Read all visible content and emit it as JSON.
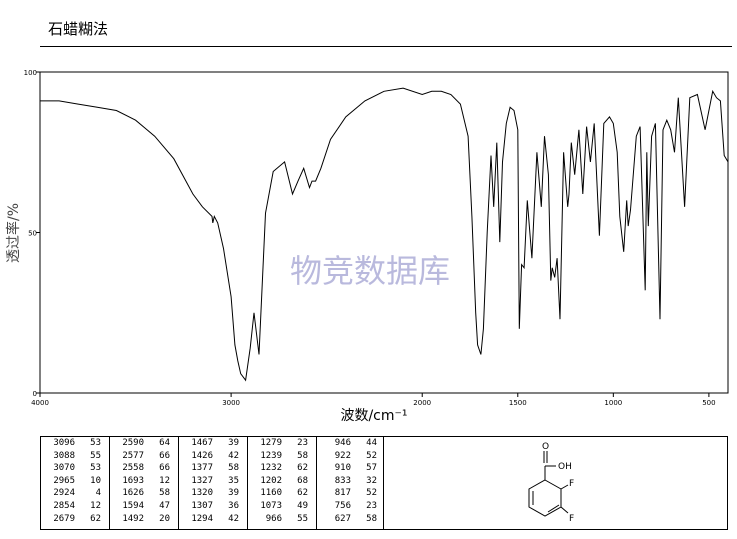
{
  "header": {
    "title": "石蜡糊法"
  },
  "chart_data": {
    "type": "line",
    "xlabel": "波数/cm⁻¹",
    "ylabel": "透过率/%",
    "xlim": [
      4000,
      400
    ],
    "ylim": [
      0,
      100
    ],
    "x_ticks": [
      4000,
      3000,
      2000,
      1500,
      1000,
      500
    ],
    "y_ticks": [
      0,
      50,
      100
    ],
    "watermark": "物竞数据库",
    "series": [
      {
        "x": [
          4000,
          3900,
          3800,
          3700,
          3600,
          3500,
          3400,
          3300,
          3200,
          3150,
          3100,
          3096,
          3088,
          3070,
          3040,
          3000,
          2980,
          2965,
          2950,
          2924,
          2900,
          2880,
          2854,
          2820,
          2780,
          2720,
          2679,
          2650,
          2620,
          2590,
          2577,
          2558,
          2530,
          2480,
          2400,
          2300,
          2200,
          2100,
          2000,
          1950,
          1900,
          1850,
          1800,
          1760,
          1740,
          1720,
          1710,
          1693,
          1680,
          1660,
          1640,
          1626,
          1610,
          1594,
          1580,
          1560,
          1540,
          1520,
          1500,
          1492,
          1480,
          1467,
          1450,
          1426,
          1400,
          1377,
          1360,
          1340,
          1327,
          1320,
          1307,
          1294,
          1279,
          1260,
          1239,
          1232,
          1220,
          1202,
          1180,
          1160,
          1140,
          1120,
          1100,
          1073,
          1050,
          1020,
          1000,
          980,
          966,
          946,
          930,
          922,
          910,
          880,
          860,
          833,
          825,
          817,
          800,
          780,
          756,
          740,
          720,
          700,
          680,
          660,
          627,
          600,
          560,
          520,
          480,
          460,
          440,
          420,
          400
        ],
        "y": [
          91,
          91,
          90,
          89,
          88,
          85,
          80,
          73,
          62,
          58,
          55,
          53,
          55,
          53,
          45,
          30,
          15,
          10,
          6,
          4,
          14,
          25,
          12,
          56,
          69,
          72,
          62,
          66,
          70,
          64,
          66,
          66,
          70,
          79,
          86,
          91,
          94,
          95,
          93,
          94,
          94,
          93,
          90,
          80,
          55,
          25,
          15,
          12,
          20,
          50,
          74,
          58,
          78,
          47,
          72,
          84,
          89,
          88,
          82,
          20,
          40,
          39,
          60,
          42,
          75,
          58,
          80,
          68,
          35,
          39,
          36,
          42,
          23,
          75,
          58,
          62,
          78,
          68,
          82,
          62,
          83,
          72,
          84,
          49,
          84,
          86,
          84,
          75,
          55,
          44,
          60,
          52,
          57,
          80,
          83,
          32,
          75,
          52,
          80,
          84,
          23,
          82,
          85,
          82,
          75,
          92,
          58,
          92,
          93,
          82,
          94,
          92,
          91,
          74,
          72
        ]
      }
    ],
    "peak_table": {
      "columns": [
        [
          [
            3096,
            53
          ],
          [
            3088,
            55
          ],
          [
            3070,
            53
          ],
          [
            2965,
            10
          ],
          [
            2924,
            4
          ],
          [
            2854,
            12
          ],
          [
            2679,
            62
          ]
        ],
        [
          [
            2590,
            64
          ],
          [
            2577,
            66
          ],
          [
            2558,
            66
          ],
          [
            1693,
            12
          ],
          [
            1626,
            58
          ],
          [
            1594,
            47
          ],
          [
            1492,
            20
          ]
        ],
        [
          [
            1467,
            39
          ],
          [
            1426,
            42
          ],
          [
            1377,
            58
          ],
          [
            1327,
            35
          ],
          [
            1320,
            39
          ],
          [
            1307,
            36
          ],
          [
            1294,
            42
          ]
        ],
        [
          [
            1279,
            23
          ],
          [
            1239,
            58
          ],
          [
            1232,
            62
          ],
          [
            1202,
            68
          ],
          [
            1160,
            62
          ],
          [
            1073,
            49
          ],
          [
            966,
            55
          ]
        ],
        [
          [
            946,
            44
          ],
          [
            922,
            52
          ],
          [
            910,
            57
          ],
          [
            833,
            32
          ],
          [
            817,
            52
          ],
          [
            756,
            23
          ],
          [
            627,
            58
          ]
        ]
      ]
    },
    "structure_labels": {
      "carbonyl_o": "O",
      "hydroxyl": "OH",
      "fluorine_top": "F",
      "fluorine_bottom": "F"
    }
  }
}
